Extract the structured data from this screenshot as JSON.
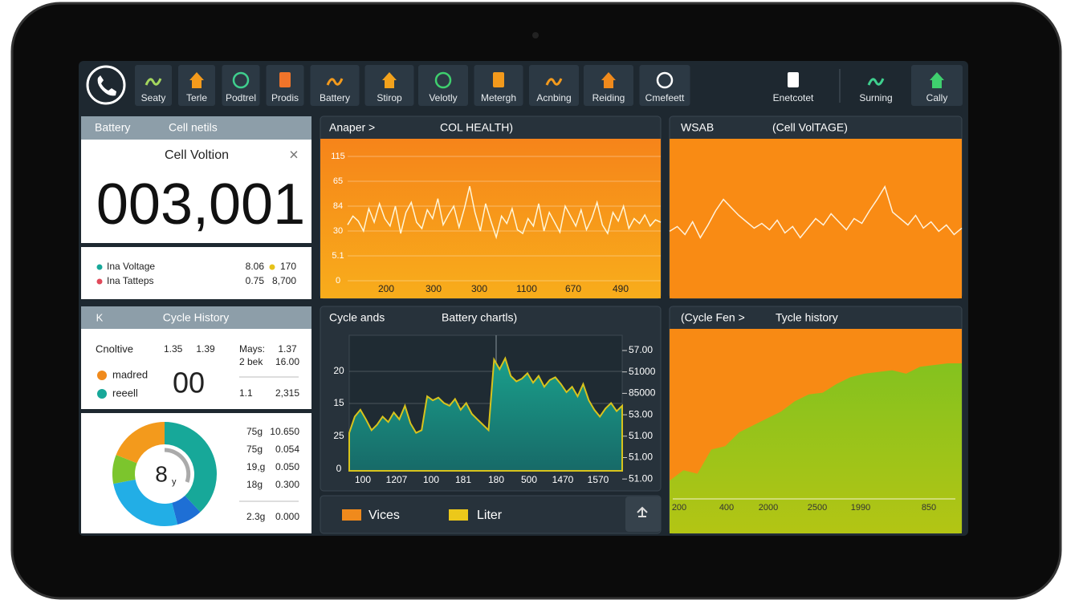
{
  "toolbar": {
    "items": [
      "Seaty",
      "Terle",
      "Podtrel",
      "Prodis",
      "Battery",
      "Stirop",
      "Velotly",
      "Metergh",
      "Acnbing",
      "Reiding",
      "Cmefeett",
      "Enetcotet",
      "Surning",
      "Cally"
    ]
  },
  "cell_panel": {
    "tabs": [
      "Battery",
      "Cell netils"
    ],
    "title": "Cell Voltion",
    "close": "×",
    "reading": "003,001",
    "legend": [
      [
        "Ina Voltage",
        "8.06",
        "170"
      ],
      [
        "Ina Tatteps",
        "0.75",
        "8,700"
      ]
    ]
  },
  "cycle_panel": {
    "back": "K",
    "title": "Cycle History",
    "texts": [
      "Cnoltive",
      "1.35",
      "1.39",
      "Mays:",
      "1.37",
      "2 bek",
      "16.00",
      "madred",
      "reeell",
      "00",
      "1.1",
      "2,315"
    ]
  },
  "donut_panel": {
    "center": "8",
    "center_sub": "y",
    "values": [
      38,
      8,
      26,
      9,
      19
    ],
    "colors": [
      "#17a899",
      "#1e6fd5",
      "#22aee6",
      "#7cc52d",
      "#f39a1c"
    ],
    "table": [
      [
        "75g",
        "10.650"
      ],
      [
        "75g",
        "0.054"
      ],
      [
        "19,g",
        "0.050"
      ],
      [
        "18g",
        "0.300"
      ],
      [
        "2.3g",
        "0.000"
      ]
    ]
  },
  "health_chart": {
    "type": "line",
    "header": [
      "Anaper >",
      "COL HEALTH)"
    ],
    "ylabels": [
      "115",
      "65",
      "84",
      "30",
      "5.1",
      "0"
    ],
    "xlabels": [
      "200",
      "300",
      "300",
      "1100",
      "670",
      "490"
    ],
    "ylim": [
      0,
      100
    ],
    "values": [
      45,
      52,
      48,
      40,
      58,
      47,
      62,
      50,
      44,
      60,
      38,
      55,
      63,
      47,
      42,
      57,
      50,
      66,
      45,
      53,
      60,
      43,
      58,
      76,
      55,
      40,
      62,
      48,
      35,
      52,
      46,
      58,
      41,
      38,
      50,
      44,
      62,
      40,
      55,
      47,
      39,
      60,
      52,
      44,
      57,
      41,
      50,
      63,
      45,
      38,
      55,
      48,
      60,
      42,
      50,
      46,
      53,
      44,
      49,
      47
    ]
  },
  "battery_chart": {
    "type": "area",
    "header": [
      "Cycle ands",
      "Battery chartls)"
    ],
    "ylabels": [
      "20",
      "15",
      "25",
      "0"
    ],
    "y2labels": [
      "57.00",
      "51000",
      "85000",
      "53.00",
      "51.00",
      "51.00",
      "51.00"
    ],
    "xlabels": [
      "100",
      "1207",
      "100",
      "181",
      "180",
      "500",
      "1470",
      "1570"
    ],
    "ylim": [
      0,
      100
    ],
    "values": [
      28,
      40,
      45,
      38,
      30,
      34,
      40,
      36,
      43,
      38,
      48,
      35,
      28,
      30,
      55,
      52,
      54,
      50,
      48,
      53,
      45,
      50,
      42,
      38,
      34,
      30,
      82,
      75,
      83,
      70,
      66,
      68,
      72,
      65,
      70,
      62,
      67,
      69,
      64,
      58,
      62,
      55,
      64,
      52,
      45,
      40,
      46,
      50,
      44,
      48
    ],
    "legend": [
      "Vices",
      "Liter"
    ]
  },
  "voltage_chart": {
    "type": "line",
    "header": [
      "WSAB",
      "(Cell VolTAGE)"
    ],
    "ylim": [
      0,
      100
    ],
    "values": [
      42,
      45,
      40,
      48,
      38,
      46,
      55,
      62,
      57,
      52,
      48,
      44,
      47,
      43,
      49,
      41,
      45,
      38,
      44,
      50,
      46,
      53,
      48,
      43,
      50,
      47,
      55,
      62,
      70,
      54,
      50,
      46,
      52,
      44,
      48,
      42,
      46,
      40,
      44
    ]
  },
  "cycle_chart": {
    "type": "area",
    "header": [
      "(Cycle Fen >",
      "Tycle history"
    ],
    "xlabels": [
      "200",
      "400",
      "2000",
      "2500",
      "1990",
      "850"
    ],
    "ylim": [
      0,
      100
    ],
    "values": [
      12,
      18,
      16,
      30,
      32,
      40,
      44,
      48,
      52,
      58,
      62,
      63,
      68,
      72,
      74,
      75,
      76,
      74,
      78,
      79,
      80,
      80
    ]
  }
}
